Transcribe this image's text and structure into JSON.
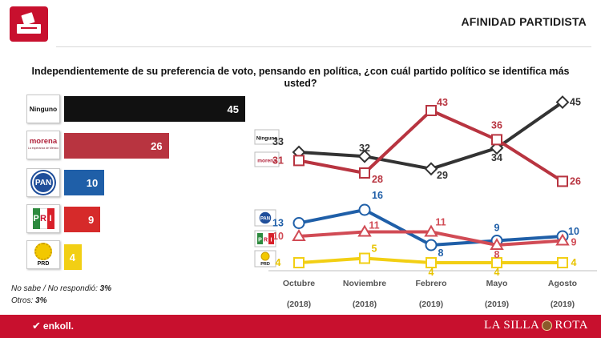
{
  "header": {
    "title": "AFINIDAD PARTIDISTA",
    "logo_icon": "ballot-box-icon"
  },
  "question": "Independientemente de su preferencia de voto, pensando en política, ¿con cuál partido político se identifica más usted?",
  "notes": {
    "no_sabe_label": "No sabe / No respondió:",
    "no_sabe_value": "3%",
    "otros_label": "Otros:",
    "otros_value": "3%"
  },
  "badges": {
    "ninguno": "Ninguno",
    "morena": "morena",
    "morena_sub": "La esperanza de México",
    "pan": "PAN",
    "pri_letters": [
      "P",
      "R",
      "I"
    ],
    "prd": "PRD"
  },
  "footer": {
    "left_brand": "enkoll.",
    "right_brand_1": "LA SILLA",
    "right_brand_2": "ROTA"
  },
  "colors": {
    "ninguno": "#222222",
    "morena": "#b83440",
    "pan": "#1f5fa8",
    "pri": "#d62a2a",
    "prd": "#f2cf14",
    "accent": "#c8102e"
  },
  "chart_data": [
    {
      "type": "bar",
      "orientation": "horizontal",
      "categories": [
        "Ninguno",
        "morena",
        "PAN",
        "PRI",
        "PRD"
      ],
      "values": [
        45,
        26,
        10,
        9,
        4
      ],
      "colors": [
        "#111111",
        "#b83440",
        "#1f5fa8",
        "#d62a2a",
        "#f2cf14"
      ]
    },
    {
      "type": "line",
      "categories": [
        "Octubre\n(2018)",
        "Noviembre\n(2018)",
        "Febrero\n(2019)",
        "Mayo\n(2019)",
        "Agosto\n(2019)"
      ],
      "series": [
        {
          "name": "Ninguno",
          "values": [
            33,
            32,
            29,
            34,
            45
          ],
          "color": "#333333",
          "marker": "diamond"
        },
        {
          "name": "morena",
          "values": [
            31,
            28,
            43,
            36,
            26
          ],
          "color": "#b83440",
          "marker": "square"
        },
        {
          "name": "PAN",
          "values": [
            13,
            16,
            8,
            9,
            10
          ],
          "color": "#1f5fa8",
          "marker": "circle"
        },
        {
          "name": "PRI",
          "values": [
            10,
            11,
            11,
            8,
            9
          ],
          "color": "#d14b55",
          "marker": "triangle"
        },
        {
          "name": "PRD",
          "values": [
            4,
            5,
            4,
            4,
            4
          ],
          "color": "#f2cf14",
          "marker": "square"
        }
      ]
    }
  ]
}
